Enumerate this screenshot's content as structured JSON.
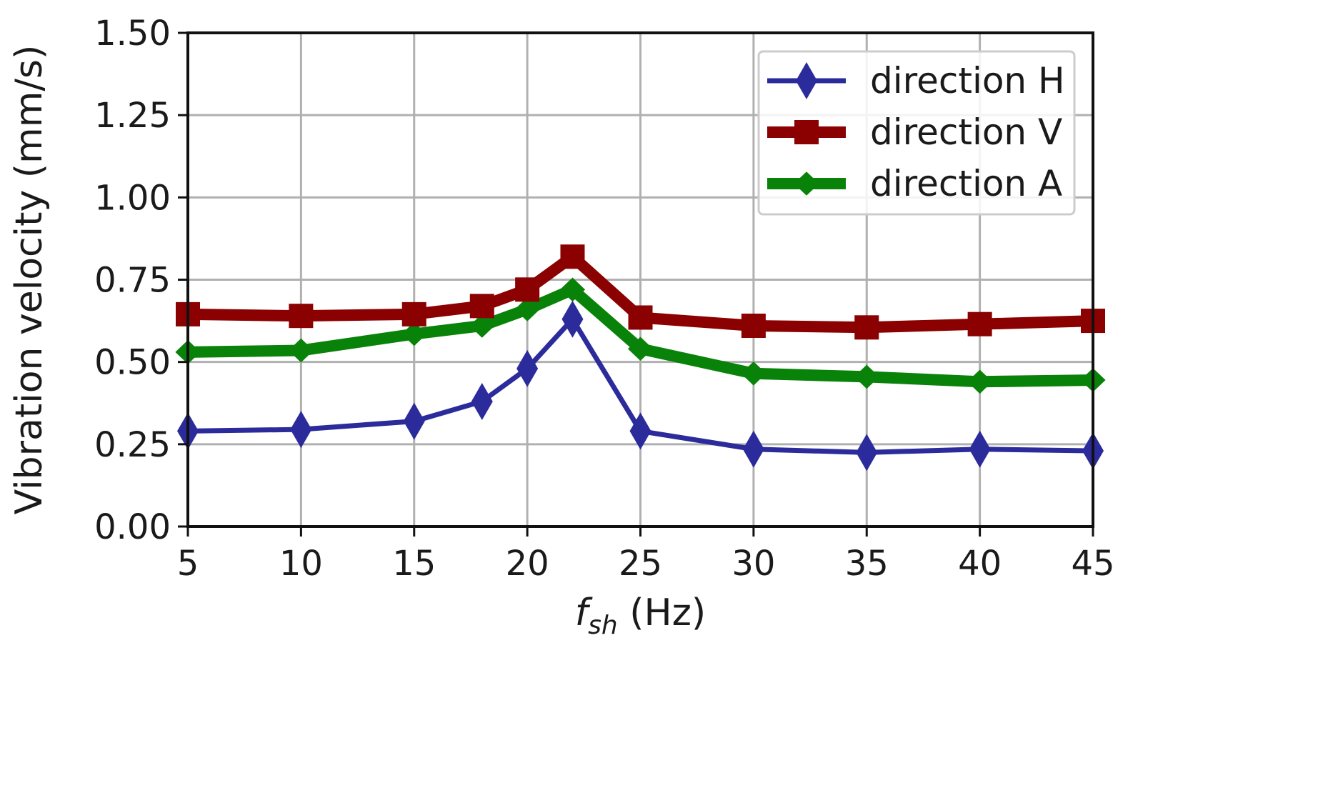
{
  "chart_data": {
    "type": "line",
    "title": "",
    "xlabel": {
      "main": "f",
      "sub": "sh",
      "unit": " (Hz)"
    },
    "ylabel": "Vibration velocity (mm/s)",
    "xlim": [
      5,
      45
    ],
    "ylim": [
      0,
      1.5
    ],
    "xticks": [
      5,
      10,
      15,
      20,
      25,
      30,
      35,
      40,
      45
    ],
    "xtick_labels": [
      "5",
      "10",
      "15",
      "20",
      "25",
      "30",
      "35",
      "40",
      "45"
    ],
    "yticks": [
      0,
      0.25,
      0.5,
      0.75,
      1.0,
      1.25,
      1.5
    ],
    "ytick_labels": [
      "0.00",
      "0.25",
      "0.50",
      "0.75",
      "1.00",
      "1.25",
      "1.50"
    ],
    "grid": true,
    "legend_position": "top-right",
    "x": [
      5,
      10,
      15,
      18,
      20,
      22,
      25,
      30,
      35,
      40,
      45
    ],
    "series": [
      {
        "name": "direction H",
        "color": "#2b2b9c",
        "marker": "diamond",
        "values": [
          0.29,
          0.295,
          0.32,
          0.38,
          0.48,
          0.63,
          0.29,
          0.235,
          0.225,
          0.235,
          0.23
        ]
      },
      {
        "name": "direction V",
        "color": "#8b0000",
        "marker": "square",
        "values": [
          0.645,
          0.64,
          0.645,
          0.67,
          0.72,
          0.82,
          0.635,
          0.61,
          0.605,
          0.615,
          0.625
        ]
      },
      {
        "name": "direction A",
        "color": "#098209",
        "marker": "circle",
        "values": [
          0.53,
          0.535,
          0.585,
          0.61,
          0.66,
          0.72,
          0.54,
          0.465,
          0.455,
          0.44,
          0.445
        ]
      }
    ]
  }
}
